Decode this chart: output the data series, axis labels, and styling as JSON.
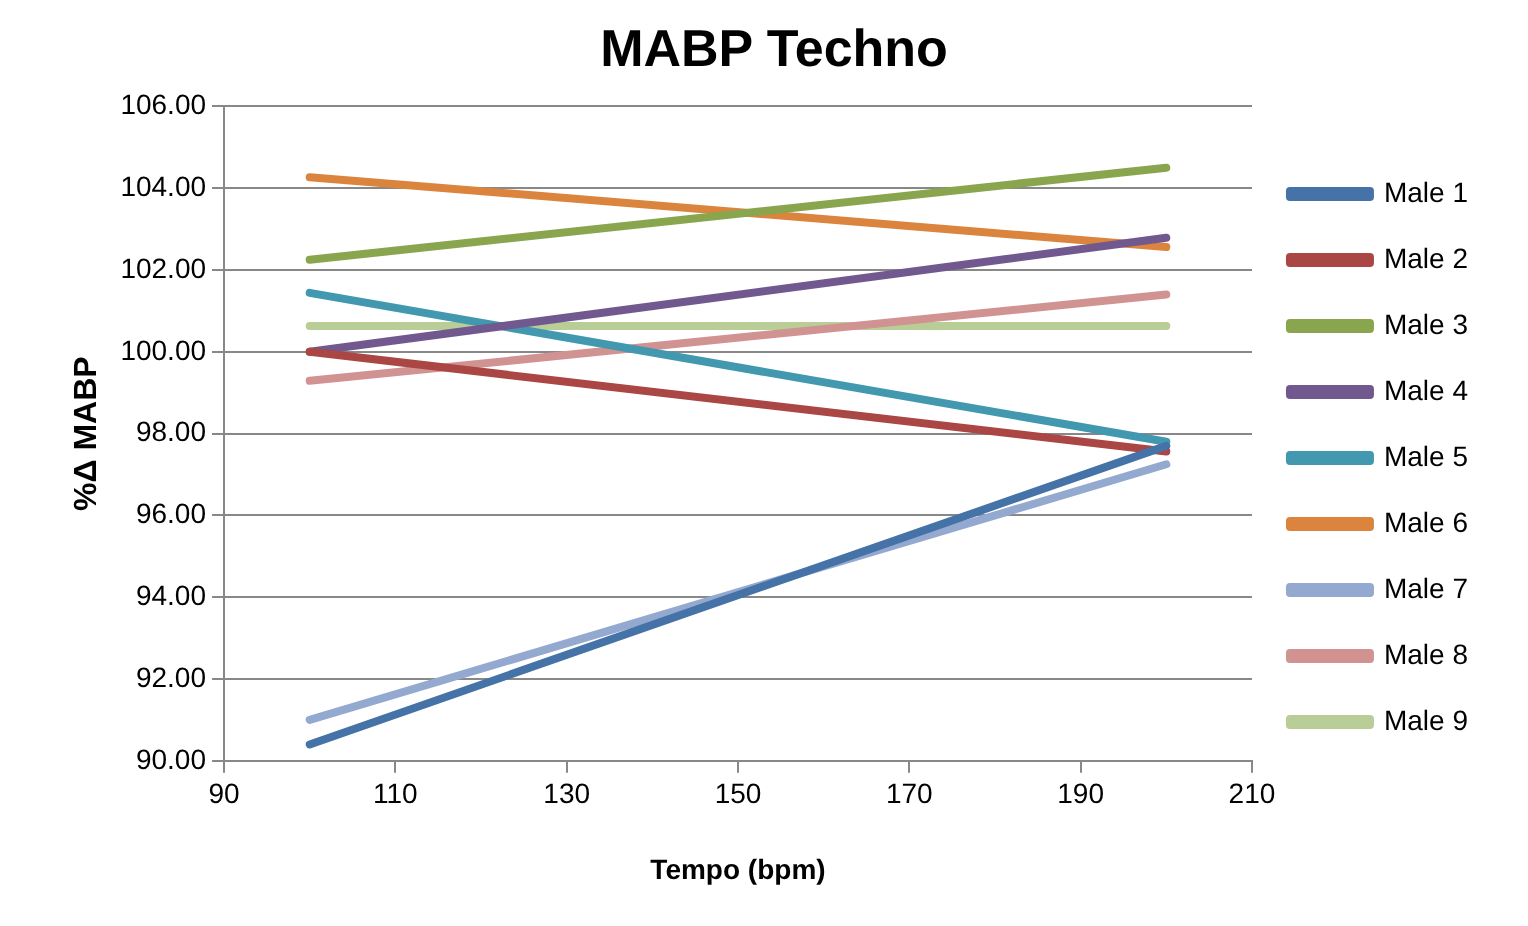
{
  "chart_data": {
    "type": "line",
    "title": "MABP Techno",
    "xlabel": "Tempo (bpm)",
    "ylabel": "%Δ MABP",
    "x": [
      100,
      200
    ],
    "xlim": [
      90,
      210
    ],
    "xticks": [
      90,
      110,
      130,
      150,
      170,
      190,
      210
    ],
    "ylim": [
      90,
      106
    ],
    "yticks": [
      {
        "value": 90,
        "label": "90.00"
      },
      {
        "value": 92,
        "label": "92.00"
      },
      {
        "value": 94,
        "label": "94.00"
      },
      {
        "value": 96,
        "label": "96.00"
      },
      {
        "value": 98,
        "label": "98.00"
      },
      {
        "value": 100,
        "label": "100.00"
      },
      {
        "value": 102,
        "label": "102.00"
      },
      {
        "value": 104,
        "label": "104.00"
      },
      {
        "value": 106,
        "label": "106.00"
      }
    ],
    "grid": "y",
    "legend": "right",
    "marker": "none",
    "series": [
      {
        "name": "Male 1",
        "color": "#4572a7",
        "values": [
          90.4,
          97.7
        ]
      },
      {
        "name": "Male 2",
        "color": "#aa4643",
        "values": [
          100.0,
          97.56
        ]
      },
      {
        "name": "Male 3",
        "color": "#89a54e",
        "values": [
          102.25,
          104.5
        ]
      },
      {
        "name": "Male 4",
        "color": "#71588f",
        "values": [
          100.0,
          102.79
        ]
      },
      {
        "name": "Male 5",
        "color": "#4198af",
        "values": [
          101.44,
          97.8
        ]
      },
      {
        "name": "Male 6",
        "color": "#db843d",
        "values": [
          104.27,
          102.56
        ]
      },
      {
        "name": "Male 7",
        "color": "#93a9cf",
        "values": [
          91.0,
          97.25
        ]
      },
      {
        "name": "Male 8",
        "color": "#d19392",
        "values": [
          99.29,
          101.4
        ]
      },
      {
        "name": "Male 9",
        "color": "#b9cd96",
        "values": [
          100.63,
          100.63
        ]
      }
    ]
  }
}
